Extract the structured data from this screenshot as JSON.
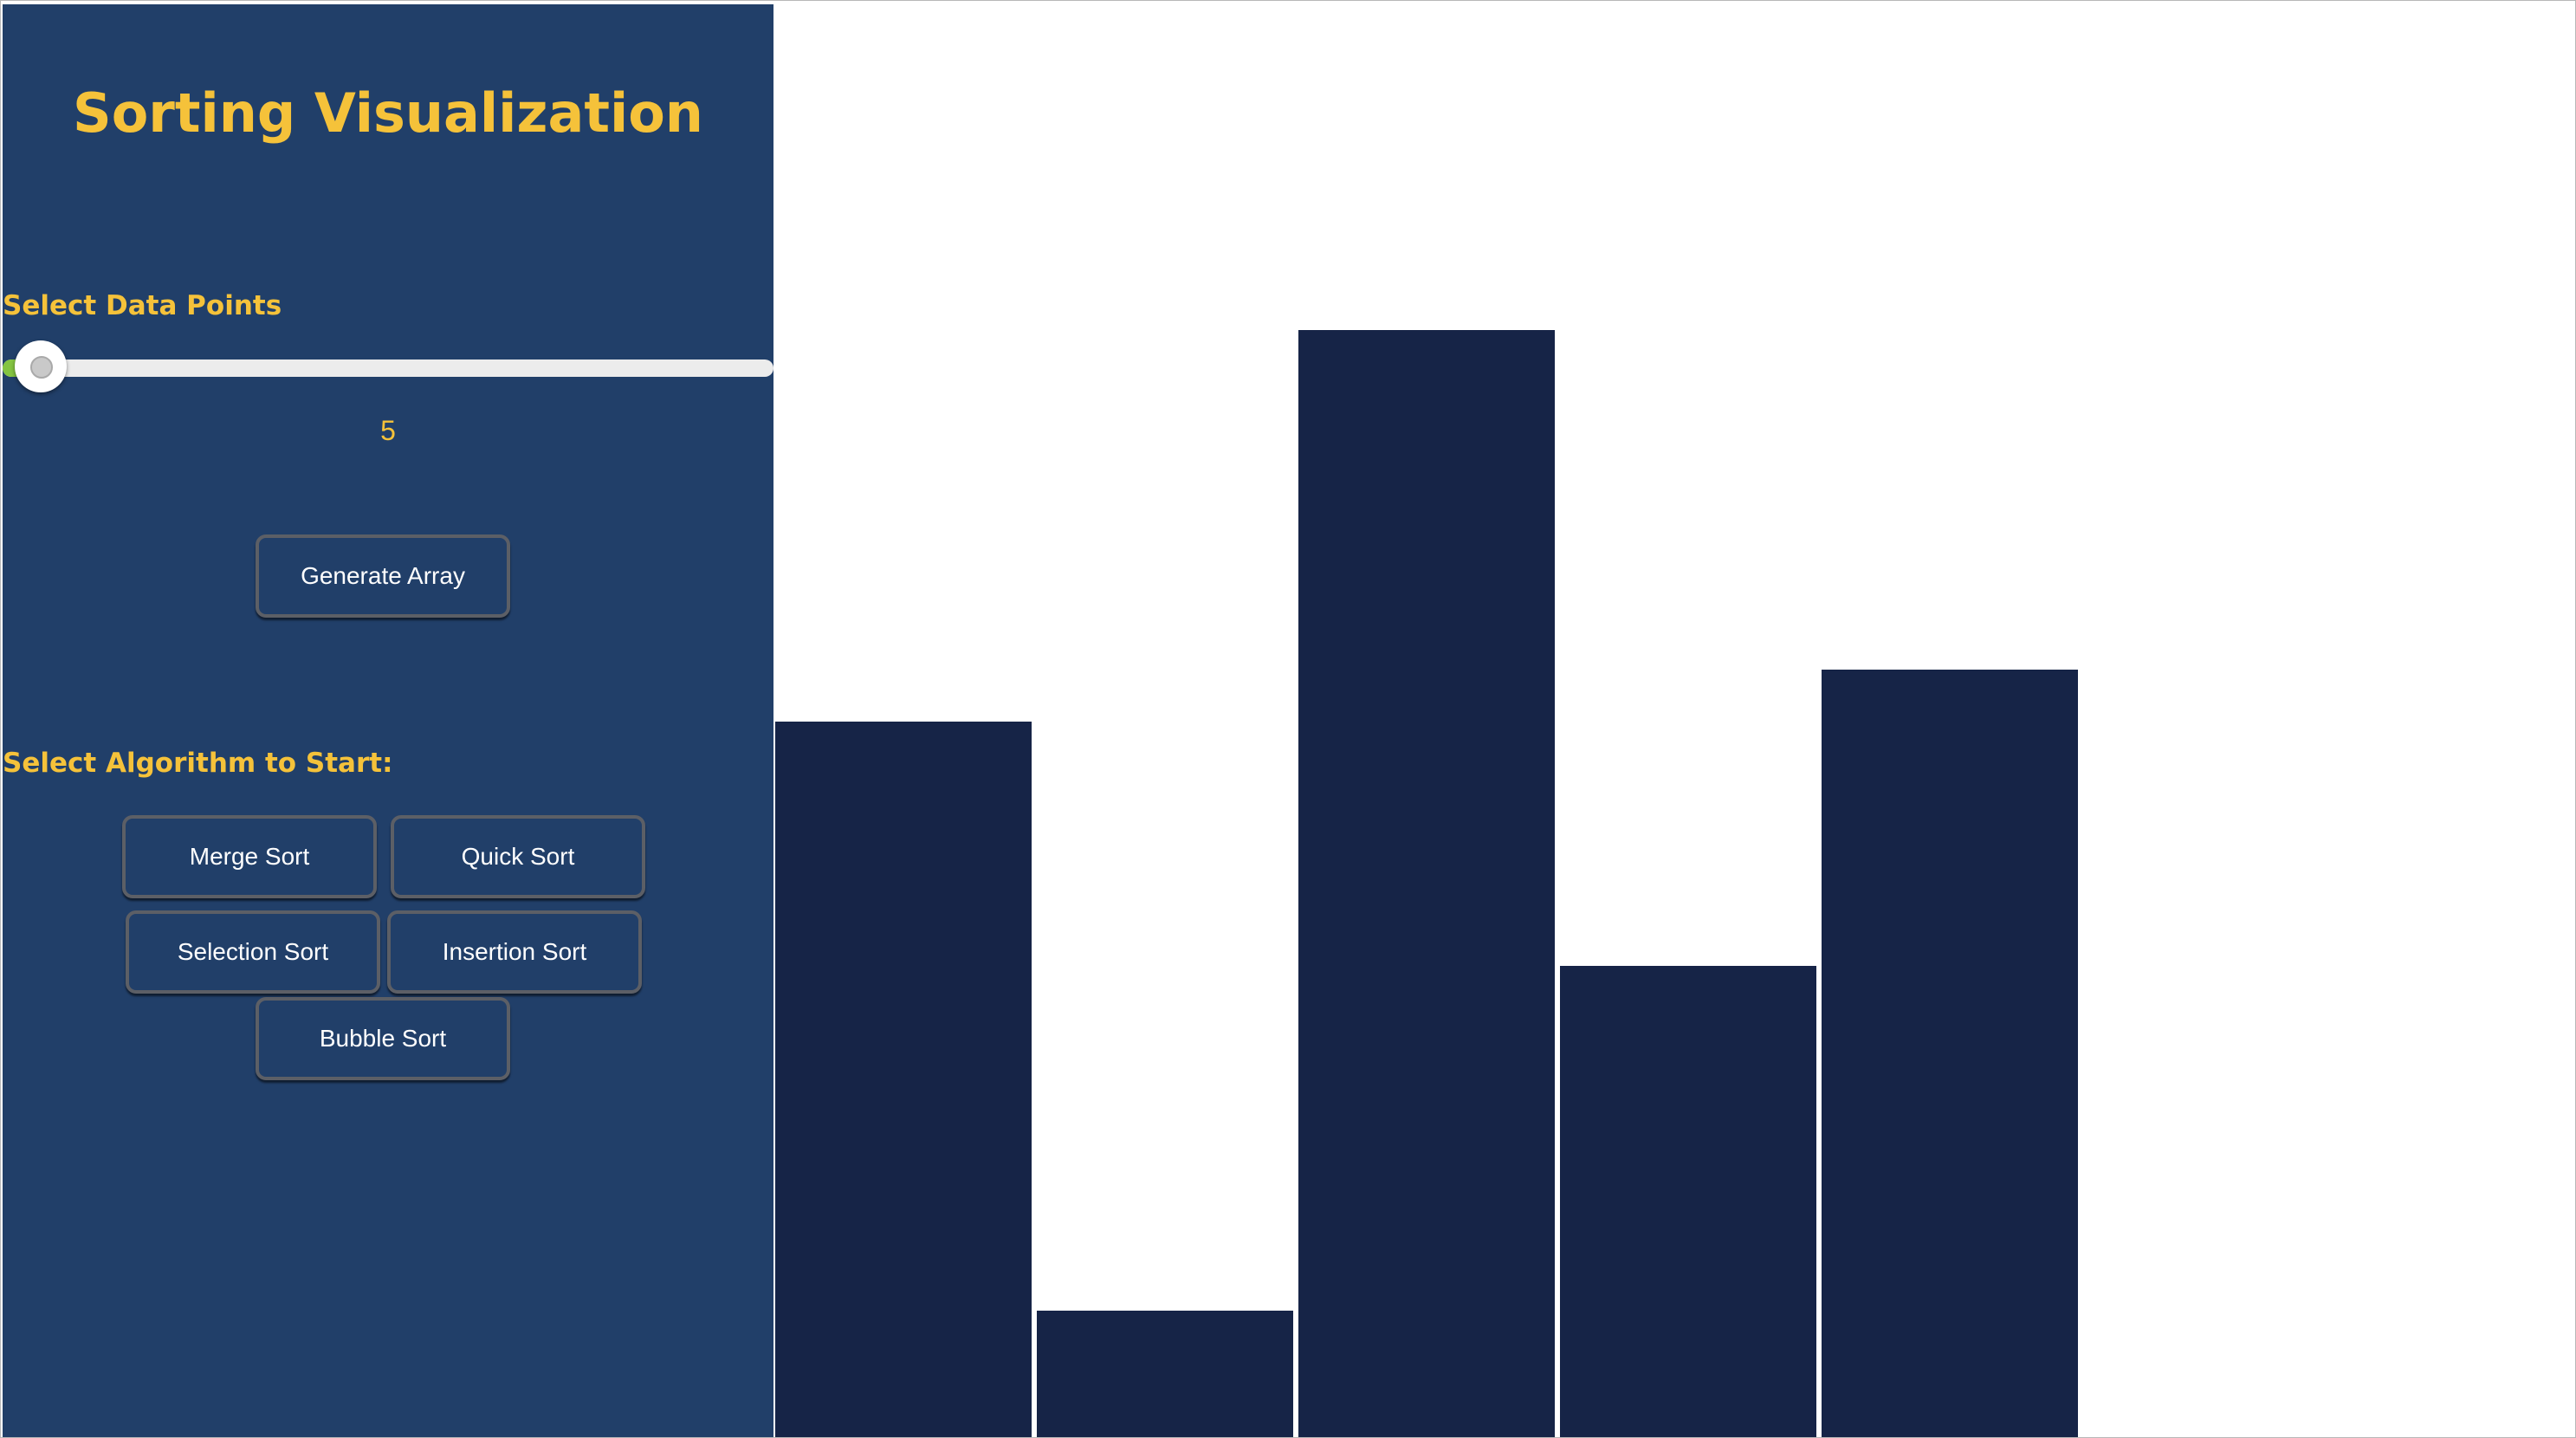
{
  "sidebar": {
    "title": "Sorting Visualization",
    "data_points_label": "Select Data Points",
    "slider": {
      "value": "5",
      "fraction": 0.0
    },
    "generate_button": "Generate Array",
    "algorithm_label": "Select Algorithm to Start:",
    "algorithms": {
      "merge": "Merge Sort",
      "quick": "Quick Sort",
      "selection": "Selection Sort",
      "insertion": "Insertion Sort",
      "bubble": "Bubble Sort"
    }
  },
  "colors": {
    "sidebar_bg": "#213f69",
    "accent": "#f5c23a",
    "bar": "#162447",
    "slider_fill": "#84c441"
  },
  "chart_data": {
    "type": "bar",
    "values": [
      826,
      146,
      1278,
      544,
      886
    ],
    "ylim": [
      0,
      1654
    ]
  }
}
